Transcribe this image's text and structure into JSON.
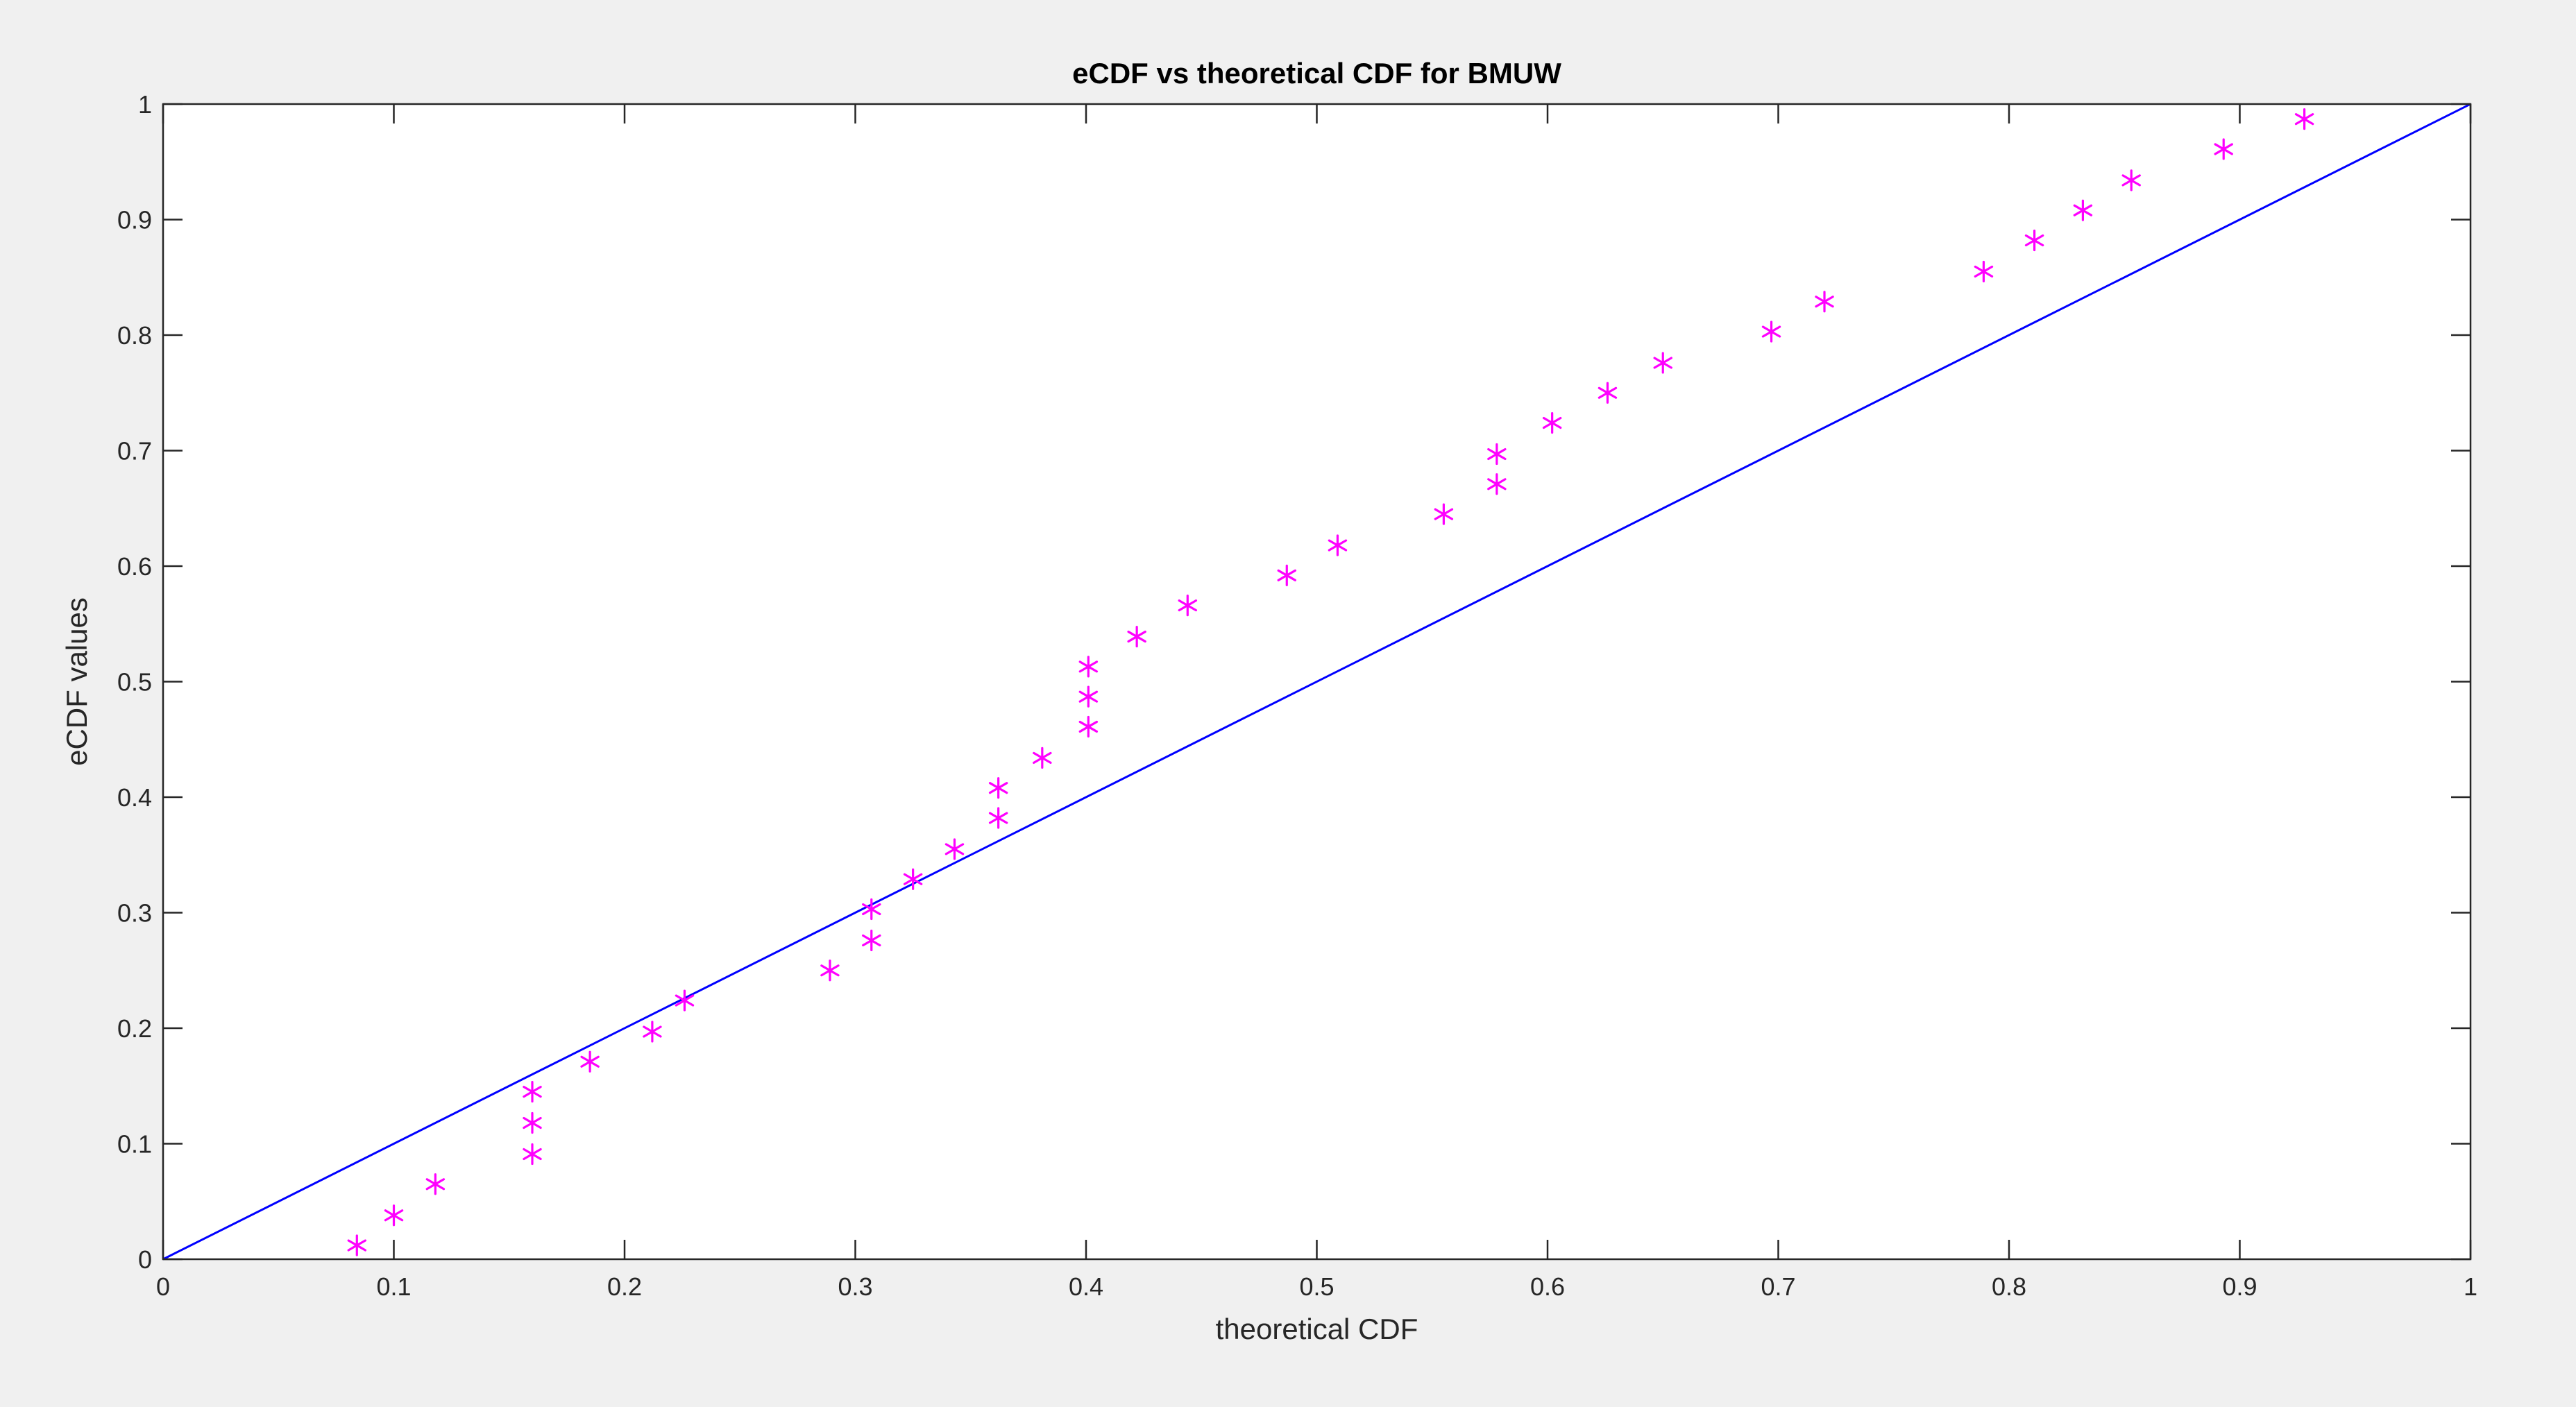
{
  "colors": {
    "figure_background": "#f0f0f0",
    "axes_background": "#ffffff",
    "axes_line": "#262626",
    "marker": "#ff00ff",
    "reference_line": "#0000ff"
  },
  "chart_data": {
    "type": "scatter",
    "title": "eCDF vs theoretical CDF for BMUW",
    "xlabel": "theoretical CDF",
    "ylabel": "eCDF values",
    "xlim": [
      0,
      1
    ],
    "ylim": [
      0,
      1
    ],
    "grid": false,
    "box": true,
    "x_ticks": [
      0,
      0.1,
      0.2,
      0.3,
      0.4,
      0.5,
      0.6,
      0.7,
      0.8,
      0.9,
      1
    ],
    "x_tick_labels": [
      "0",
      "0.1",
      "0.2",
      "0.3",
      "0.4",
      "0.5",
      "0.6",
      "0.7",
      "0.8",
      "0.9",
      "1"
    ],
    "y_ticks": [
      0,
      0.1,
      0.2,
      0.3,
      0.4,
      0.5,
      0.6,
      0.7,
      0.8,
      0.9,
      1
    ],
    "y_tick_labels": [
      "0",
      "0.1",
      "0.2",
      "0.3",
      "0.4",
      "0.5",
      "0.6",
      "0.7",
      "0.8",
      "0.9",
      "1"
    ],
    "marker": "asterisk",
    "points": [
      [
        0.084,
        0.012
      ],
      [
        0.1,
        0.038
      ],
      [
        0.118,
        0.065
      ],
      [
        0.16,
        0.091
      ],
      [
        0.16,
        0.118
      ],
      [
        0.16,
        0.145
      ],
      [
        0.185,
        0.171
      ],
      [
        0.212,
        0.197
      ],
      [
        0.226,
        0.224
      ],
      [
        0.289,
        0.25
      ],
      [
        0.307,
        0.276
      ],
      [
        0.307,
        0.303
      ],
      [
        0.325,
        0.329
      ],
      [
        0.343,
        0.355
      ],
      [
        0.362,
        0.382
      ],
      [
        0.362,
        0.408
      ],
      [
        0.381,
        0.434
      ],
      [
        0.401,
        0.461
      ],
      [
        0.401,
        0.487
      ],
      [
        0.401,
        0.513
      ],
      [
        0.422,
        0.539
      ],
      [
        0.444,
        0.566
      ],
      [
        0.487,
        0.592
      ],
      [
        0.509,
        0.618
      ],
      [
        0.555,
        0.645
      ],
      [
        0.578,
        0.671
      ],
      [
        0.578,
        0.697
      ],
      [
        0.602,
        0.724
      ],
      [
        0.626,
        0.75
      ],
      [
        0.65,
        0.776
      ],
      [
        0.697,
        0.803
      ],
      [
        0.72,
        0.829
      ],
      [
        0.789,
        0.855
      ],
      [
        0.811,
        0.882
      ],
      [
        0.832,
        0.908
      ],
      [
        0.853,
        0.934
      ],
      [
        0.893,
        0.961
      ],
      [
        0.928,
        0.987
      ]
    ],
    "reference_line": [
      [
        0,
        0
      ],
      [
        1,
        1
      ]
    ]
  }
}
